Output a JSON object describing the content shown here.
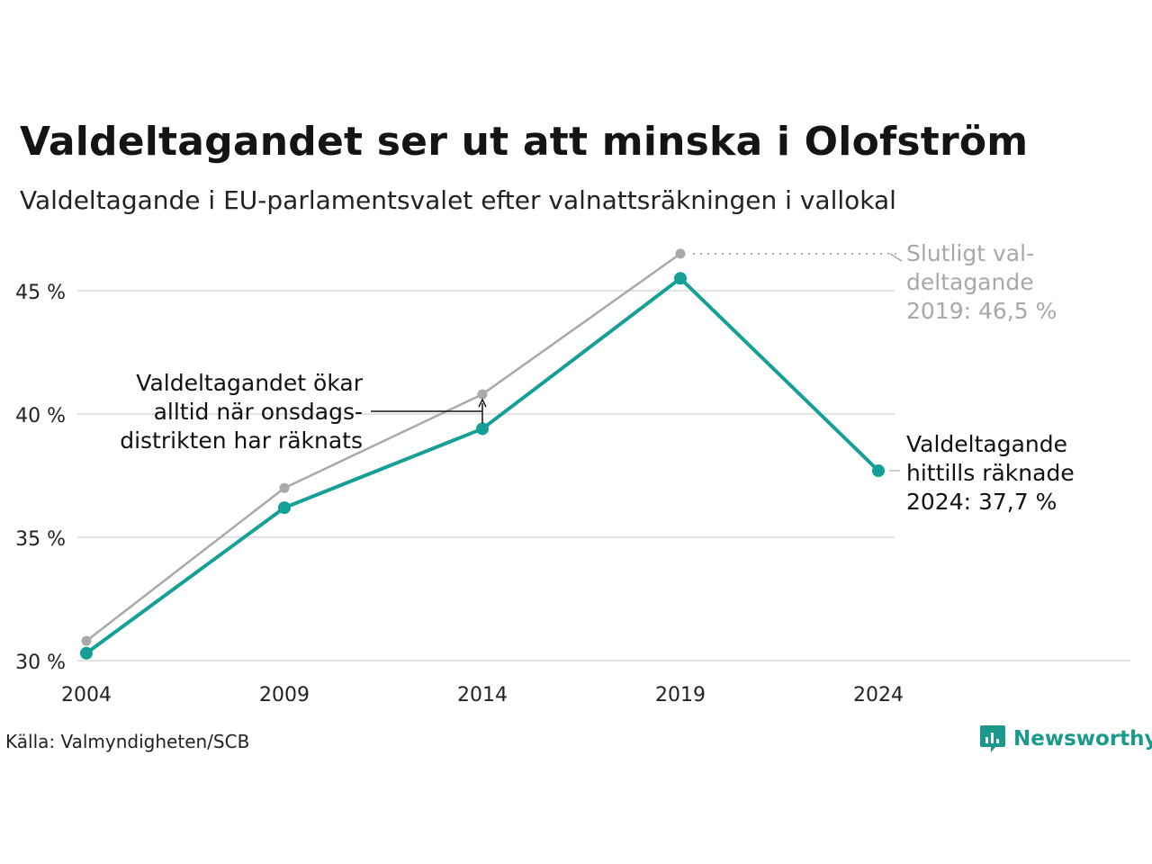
{
  "title": "Valdeltagandet ser ut att minska i Olofström",
  "subtitle": "Valdeltagande i EU-parlamentsvalet efter valnattsräkningen i vallokal",
  "source": "Källa: Valmyndigheten/SCB",
  "brand": "Newsworthy",
  "colors": {
    "teal": "#14a096",
    "grey": "#a9a9a9",
    "grid": "#e3e3e3",
    "brand": "#1a9a8c"
  },
  "annotations": {
    "wednesday": [
      "Valdeltagandet ökar",
      "alltid när onsdags-",
      "distrikten har räknats"
    ],
    "final_2019": [
      "Slutligt val-",
      "deltagande",
      "2019: 46,5 %"
    ],
    "counted_2024": [
      "Valdeltagande",
      "hittills räknade",
      "2024: 37,7 %"
    ]
  },
  "chart_data": {
    "type": "line",
    "x": [
      "2004",
      "2009",
      "2014",
      "2019",
      "2024"
    ],
    "y_ticks": [
      30,
      35,
      40,
      45
    ],
    "y_tick_labels": [
      "30 %",
      "35 %",
      "40 %",
      "45 %"
    ],
    "ylim": [
      30,
      47
    ],
    "series": [
      {
        "name": "",
        "color": "grey",
        "values": [
          30.8,
          37.0,
          40.8,
          46.5,
          null
        ]
      },
      {
        "name": "",
        "color": "teal",
        "values": [
          30.3,
          36.2,
          39.4,
          45.5,
          37.7
        ]
      }
    ],
    "grid": true
  }
}
